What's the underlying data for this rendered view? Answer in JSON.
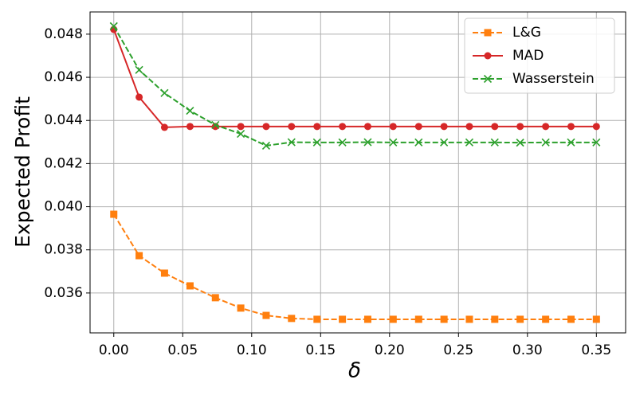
{
  "chart_data": {
    "type": "line",
    "xlabel": "δ",
    "ylabel": "Expected Profit",
    "x": [
      0,
      0.0184,
      0.0368,
      0.0553,
      0.0737,
      0.0921,
      0.1105,
      0.1289,
      0.1474,
      0.1658,
      0.1842,
      0.2026,
      0.2211,
      0.2395,
      0.2579,
      0.2763,
      0.2947,
      0.3132,
      0.3316,
      0.35
    ],
    "series": [
      {
        "name": "L&G",
        "color": "#ff7f0e",
        "marker": "square",
        "dashed": true,
        "values": [
          0.03965,
          0.03773,
          0.03692,
          0.03633,
          0.03578,
          0.0353,
          0.03496,
          0.03482,
          0.03478,
          0.03478,
          0.03478,
          0.03478,
          0.03478,
          0.03478,
          0.03478,
          0.03478,
          0.03478,
          0.03478,
          0.03478,
          0.03478
        ]
      },
      {
        "name": "MAD",
        "color": "#d62728",
        "marker": "circle",
        "dashed": false,
        "values": [
          0.04822,
          0.04508,
          0.04368,
          0.04372,
          0.04372,
          0.04372,
          0.04372,
          0.04372,
          0.04372,
          0.04372,
          0.04372,
          0.04372,
          0.04372,
          0.04372,
          0.04372,
          0.04372,
          0.04372,
          0.04372,
          0.04372,
          0.04372
        ]
      },
      {
        "name": "Wasserstein",
        "color": "#2ca02c",
        "marker": "x",
        "dashed": true,
        "values": [
          0.04837,
          0.04634,
          0.04527,
          0.04445,
          0.04379,
          0.04338,
          0.04283,
          0.04299,
          0.04298,
          0.04298,
          0.04299,
          0.04298,
          0.04298,
          0.04298,
          0.04298,
          0.04298,
          0.04297,
          0.04298,
          0.04298,
          0.04298
        ]
      }
    ],
    "xlim": [
      -0.0172,
      0.3712
    ],
    "ylim": [
      0.03415,
      0.04903
    ],
    "xticks": [
      {
        "value": 0,
        "label": "0.00"
      },
      {
        "value": 0.05,
        "label": "0.05"
      },
      {
        "value": 0.1,
        "label": "0.10"
      },
      {
        "value": 0.15,
        "label": "0.15"
      },
      {
        "value": 0.2,
        "label": "0.20"
      },
      {
        "value": 0.25,
        "label": "0.25"
      },
      {
        "value": 0.3,
        "label": "0.30"
      },
      {
        "value": 0.35,
        "label": "0.35"
      }
    ],
    "yticks": [
      {
        "value": 0.036,
        "label": "0.036"
      },
      {
        "value": 0.038,
        "label": "0.038"
      },
      {
        "value": 0.04,
        "label": "0.040"
      },
      {
        "value": 0.042,
        "label": "0.042"
      },
      {
        "value": 0.044,
        "label": "0.044"
      },
      {
        "value": 0.046,
        "label": "0.046"
      },
      {
        "value": 0.048,
        "label": "0.048"
      }
    ],
    "grid": true,
    "legend": "upper right"
  }
}
